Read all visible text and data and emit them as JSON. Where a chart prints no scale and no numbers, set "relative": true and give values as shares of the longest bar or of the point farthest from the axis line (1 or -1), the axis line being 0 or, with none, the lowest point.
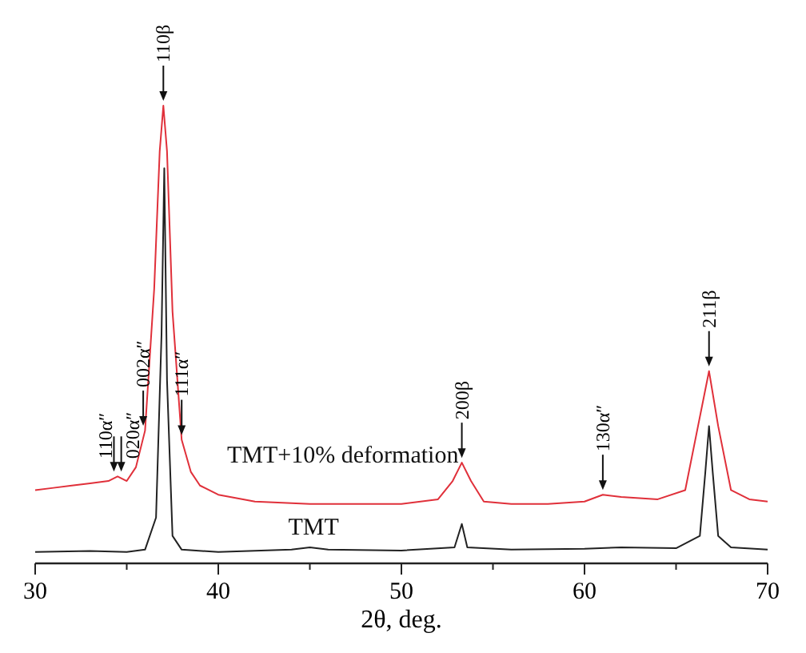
{
  "chart_data": {
    "type": "line",
    "relative": true,
    "xlabel": "2θ, deg.",
    "xlim": [
      30,
      70
    ],
    "xticks": [
      30,
      {
        "value": 35,
        "label": null
      },
      40,
      {
        "value": 45,
        "label": null
      },
      50,
      {
        "value": 55,
        "label": null
      },
      60,
      {
        "value": 65,
        "label": null
      },
      70
    ],
    "tick_labels": "x",
    "legend": false,
    "grid": false,
    "marker": "none",
    "line_style": "solid",
    "series": [
      {
        "name": "TMT+10% deformation",
        "color": "#e0303a",
        "x": [
          30,
          31,
          32,
          33,
          34,
          34.5,
          35,
          35.5,
          36,
          36.5,
          36.8,
          37,
          37.2,
          37.5,
          38,
          38.5,
          39,
          40,
          42,
          45,
          48,
          50,
          52,
          52.8,
          53.3,
          53.8,
          54.5,
          56,
          58,
          60,
          61,
          62,
          64,
          65.5,
          66.2,
          66.8,
          67.3,
          68,
          69,
          70
        ],
        "values": [
          0.16,
          0.165,
          0.17,
          0.175,
          0.18,
          0.19,
          0.18,
          0.21,
          0.29,
          0.6,
          0.9,
          1,
          0.9,
          0.55,
          0.27,
          0.2,
          0.17,
          0.15,
          0.135,
          0.13,
          0.13,
          0.13,
          0.14,
          0.18,
          0.22,
          0.18,
          0.135,
          0.13,
          0.13,
          0.135,
          0.15,
          0.145,
          0.14,
          0.16,
          0.3,
          0.42,
          0.3,
          0.16,
          0.14,
          0.135
        ]
      },
      {
        "name": "TMT",
        "color": "#222222",
        "x": [
          30,
          33,
          35,
          36,
          36.6,
          36.9,
          37.05,
          37.2,
          37.5,
          38,
          40,
          44,
          45,
          46,
          50,
          52.9,
          53.3,
          53.6,
          56,
          60,
          62,
          65,
          66.3,
          66.6,
          66.8,
          67,
          67.3,
          68,
          70
        ],
        "values": [
          0.025,
          0.027,
          0.025,
          0.03,
          0.1,
          0.5,
          0.863,
          0.4,
          0.06,
          0.03,
          0.025,
          0.03,
          0.035,
          0.03,
          0.028,
          0.035,
          0.086,
          0.035,
          0.03,
          0.032,
          0.035,
          0.033,
          0.06,
          0.2,
          0.3,
          0.2,
          0.06,
          0.035,
          0.03
        ]
      }
    ],
    "annotations": [
      {
        "text": "110β",
        "x": 37,
        "y": 1
      },
      {
        "text": "200β",
        "x": 53.3,
        "y": 0.22
      },
      {
        "text": "211β",
        "x": 66.8,
        "y": 0.42
      },
      {
        "text": "110α″",
        "x": 34.3,
        "y": 0.19
      },
      {
        "text": "020α″",
        "x": 34.7,
        "y": 0.19
      },
      {
        "text": "002α″",
        "x": 35.9,
        "y": 0.29
      },
      {
        "text": "111α″",
        "x": 38.0,
        "y": 0.27
      },
      {
        "text": "130α″",
        "x": 61.0,
        "y": 0.15
      }
    ]
  }
}
